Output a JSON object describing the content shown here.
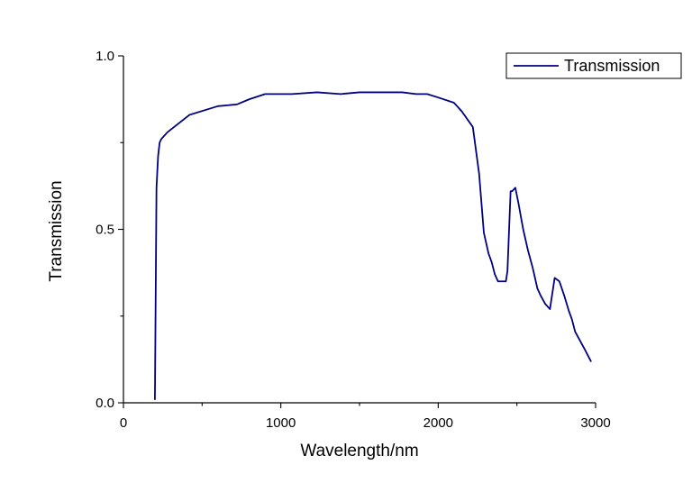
{
  "chart_data": {
    "type": "line",
    "title": "",
    "xlabel": "Wavelength/nm",
    "ylabel": "Transmission",
    "xlim": [
      0,
      3000
    ],
    "ylim": [
      0.0,
      1.0
    ],
    "x_ticks": [
      {
        "value": 0,
        "label": "0"
      },
      {
        "value": 1000,
        "label": "1000"
      },
      {
        "value": 2000,
        "label": "2000"
      },
      {
        "value": 3000,
        "label": "3000"
      }
    ],
    "y_ticks": [
      {
        "value": 0.0,
        "label": "0.0"
      },
      {
        "value": 0.5,
        "label": "0.5"
      },
      {
        "value": 1.0,
        "label": "1.0"
      }
    ],
    "grid": false,
    "legend_position": "top-right",
    "series": [
      {
        "name": "Transmission",
        "color": "#000080",
        "x": [
          200,
          210,
          220,
          230,
          240,
          280,
          420,
          600,
          720,
          800,
          900,
          1070,
          1230,
          1380,
          1500,
          1620,
          1770,
          1860,
          1930,
          2000,
          2100,
          2150,
          2220,
          2260,
          2290,
          2320,
          2340,
          2360,
          2380,
          2400,
          2430,
          2440,
          2460,
          2470,
          2490,
          2510,
          2540,
          2570,
          2600,
          2630,
          2650,
          2680,
          2710,
          2740,
          2770,
          2800,
          2830,
          2850,
          2870,
          2900,
          2930,
          2970
        ],
        "values": [
          0.01,
          0.62,
          0.71,
          0.75,
          0.76,
          0.78,
          0.83,
          0.855,
          0.86,
          0.875,
          0.89,
          0.89,
          0.895,
          0.89,
          0.895,
          0.895,
          0.895,
          0.89,
          0.89,
          0.88,
          0.865,
          0.84,
          0.795,
          0.66,
          0.49,
          0.43,
          0.405,
          0.37,
          0.35,
          0.35,
          0.35,
          0.38,
          0.61,
          0.61,
          0.62,
          0.575,
          0.5,
          0.44,
          0.39,
          0.33,
          0.31,
          0.285,
          0.27,
          0.36,
          0.35,
          0.31,
          0.265,
          0.24,
          0.205,
          0.18,
          0.155,
          0.12
        ]
      }
    ]
  }
}
